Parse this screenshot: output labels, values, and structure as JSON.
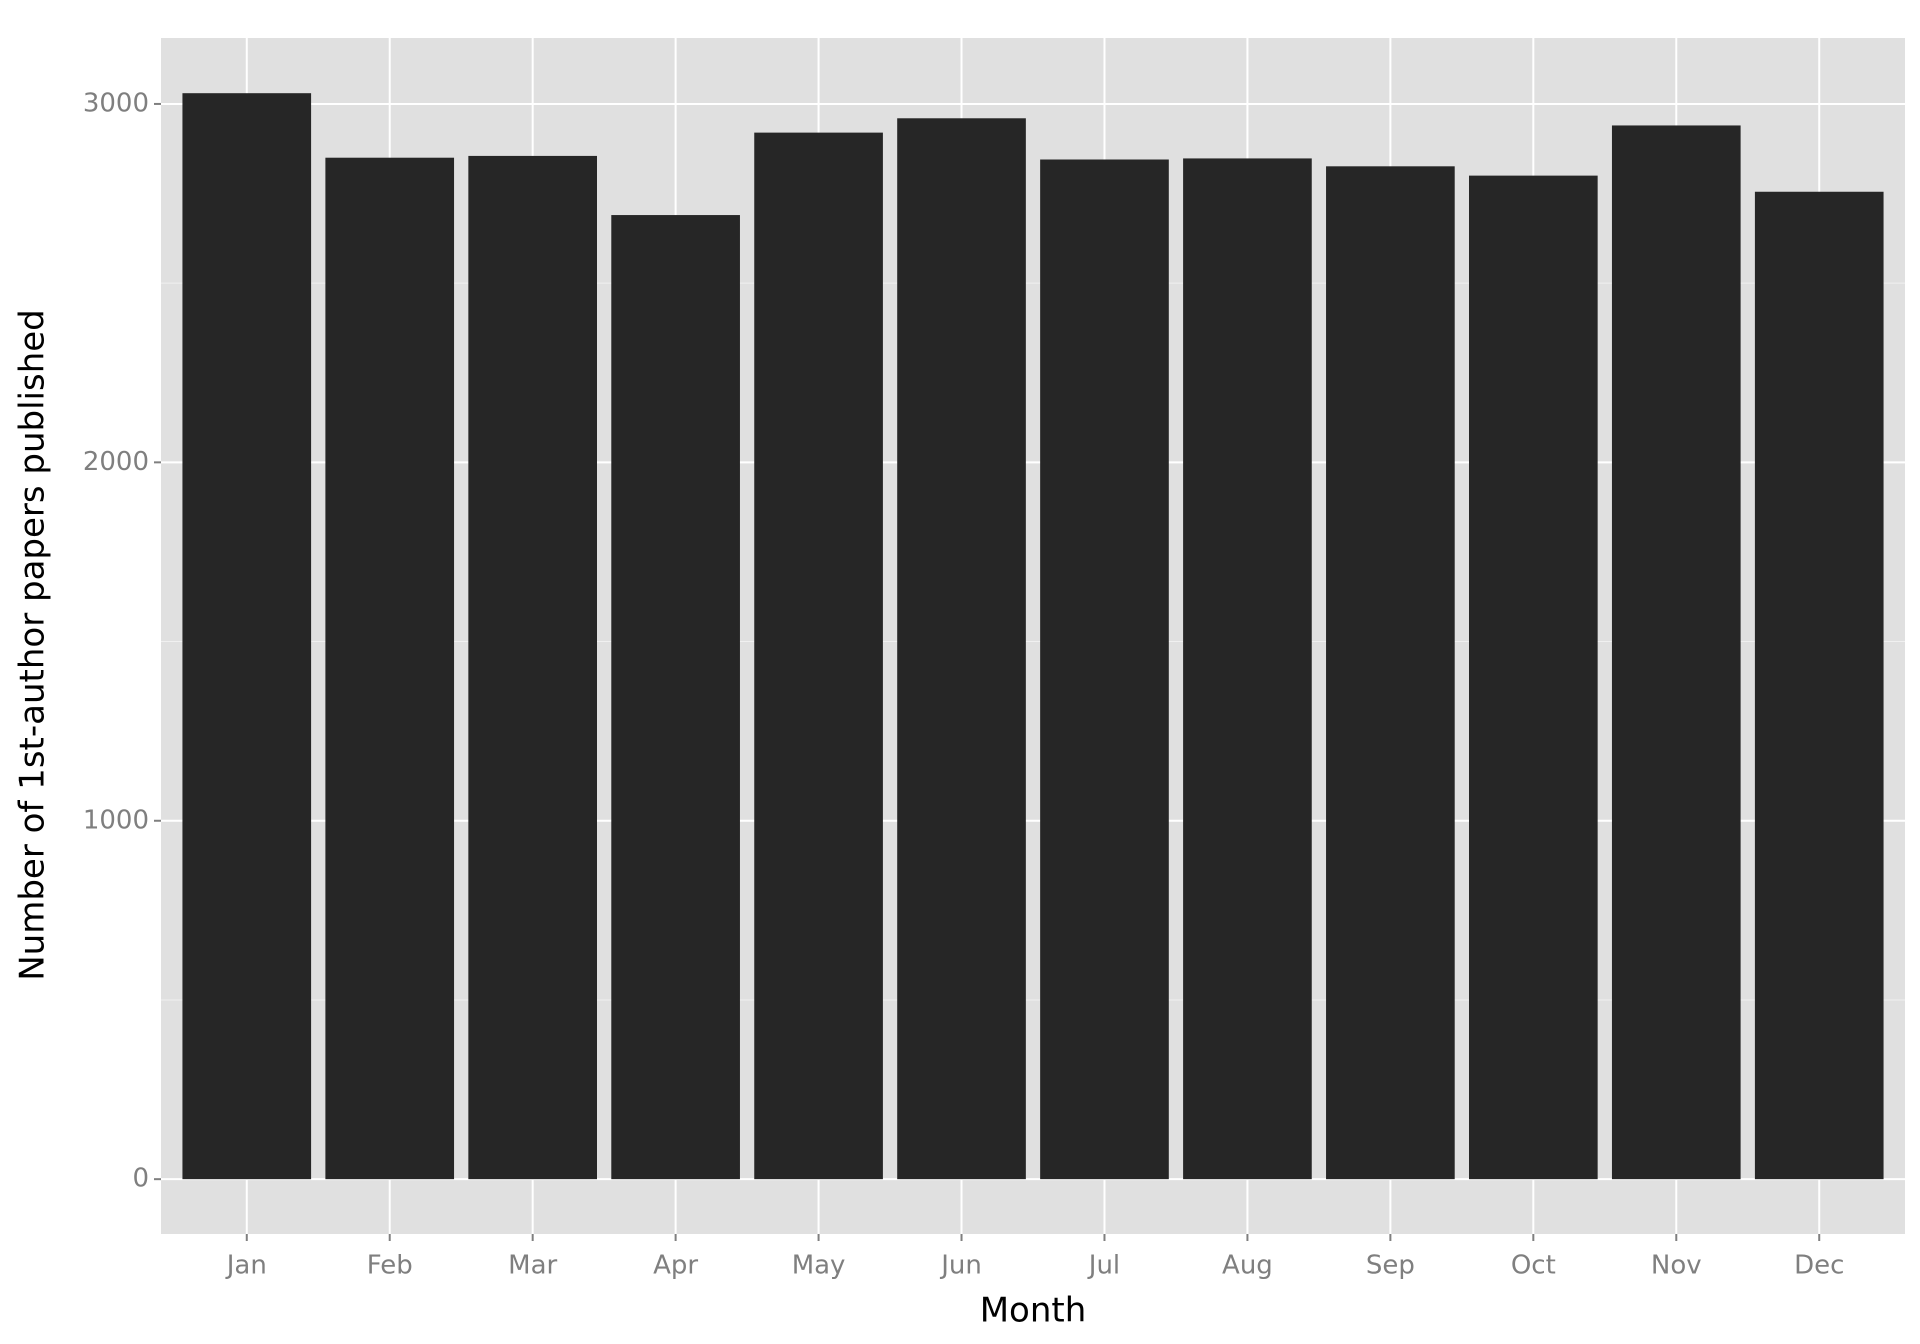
{
  "chart_data": {
    "type": "bar",
    "x_label": "Month",
    "y_label": "Number of 1st-author papers published",
    "categories": [
      "Jan",
      "Feb",
      "Mar",
      "Apr",
      "May",
      "Jun",
      "Jul",
      "Aug",
      "Sep",
      "Oct",
      "Nov",
      "Dec"
    ],
    "values": [
      3030,
      2850,
      2855,
      2690,
      2920,
      2960,
      2845,
      2848,
      2826,
      2800,
      2940,
      2755
    ],
    "color": "#262626",
    "ylim": [
      -153,
      3184
    ],
    "yticks": [
      0,
      1000,
      2000,
      3000
    ],
    "y_minor_ticks": [
      500,
      1500,
      2500
    ],
    "grid": true
  }
}
